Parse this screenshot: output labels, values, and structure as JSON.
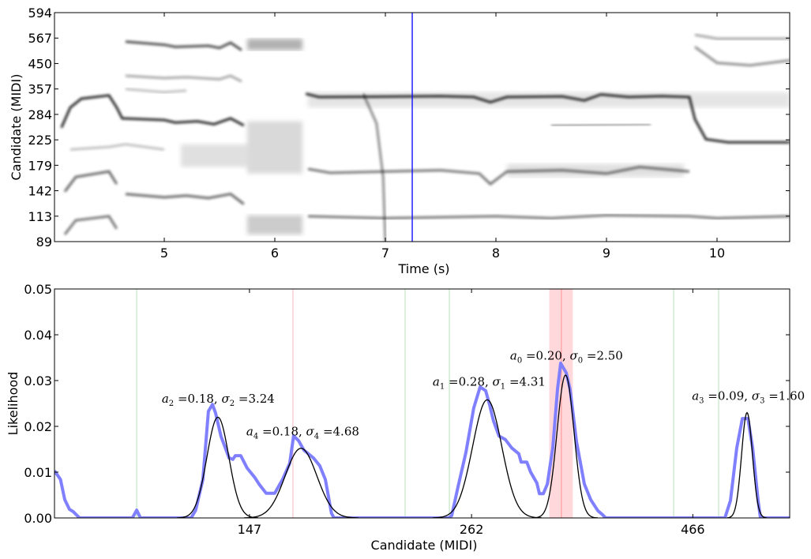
{
  "chart_data": [
    {
      "type": "heatmap",
      "title": "",
      "xlabel": "Time (s)",
      "ylabel": "Candidate (MIDI)",
      "xlim": [
        4.007,
        10.657
      ],
      "xticks": [
        5,
        6,
        7,
        8,
        9,
        10
      ],
      "xtick_labels": [
        "5",
        "6",
        "7",
        "8",
        "9",
        "10"
      ],
      "ytick_labels": [
        "89",
        "113",
        "142",
        "179",
        "225",
        "284",
        "357",
        "450",
        "567",
        "594"
      ],
      "ytick_ratio": 1.2594,
      "colormap": "gray_r",
      "cursor_time": 7.243,
      "cursor_color": "#0000ff",
      "traces": [
        {
          "name": "trace-main",
          "intensity": 0.85,
          "points": [
            [
              4.07,
              250
            ],
            [
              4.15,
              300
            ],
            [
              4.25,
              325
            ],
            [
              4.5,
              335
            ],
            [
              4.57,
              300
            ],
            [
              4.62,
              272
            ],
            [
              5.0,
              268
            ],
            [
              5.1,
              262
            ],
            [
              5.3,
              265
            ],
            [
              5.45,
              258
            ],
            [
              5.6,
              272
            ],
            [
              5.72,
              255
            ]
          ]
        },
        {
          "name": "trace-main-2",
          "intensity": 0.85,
          "points": [
            [
              6.28,
              340
            ],
            [
              6.4,
              330
            ],
            [
              6.9,
              331
            ],
            [
              7.5,
              333
            ],
            [
              7.8,
              330
            ],
            [
              7.95,
              315
            ],
            [
              8.1,
              330
            ],
            [
              8.6,
              332
            ],
            [
              8.8,
              320
            ],
            [
              8.95,
              338
            ],
            [
              9.2,
              330
            ],
            [
              9.5,
              333
            ],
            [
              9.75,
              330
            ],
            [
              9.8,
              270
            ],
            [
              9.9,
              225
            ],
            [
              10.1,
              219
            ],
            [
              10.657,
              219
            ]
          ]
        },
        {
          "name": "trace-upper",
          "intensity": 0.7,
          "points": [
            [
              4.65,
              545
            ],
            [
              5.0,
              530
            ],
            [
              5.1,
              520
            ],
            [
              5.4,
              525
            ],
            [
              5.5,
              515
            ],
            [
              5.6,
              540
            ],
            [
              5.7,
              505
            ]
          ]
        },
        {
          "name": "trace-upper-left",
          "intensity": 0.6,
          "points": [
            [
              4.15,
              505
            ],
            [
              4.5,
              505
            ]
          ]
        },
        {
          "name": "trace-400",
          "intensity": 0.35,
          "points": [
            [
              4.65,
              400
            ],
            [
              5.0,
              392
            ],
            [
              5.2,
              395
            ],
            [
              5.5,
              388
            ],
            [
              5.6,
              400
            ],
            [
              5.7,
              380
            ]
          ]
        },
        {
          "name": "trace-360",
          "intensity": 0.25,
          "points": [
            [
              4.65,
              355
            ],
            [
              5.0,
              345
            ],
            [
              5.2,
              350
            ]
          ]
        },
        {
          "name": "trace-170-left",
          "intensity": 0.6,
          "points": [
            [
              4.1,
              140
            ],
            [
              4.2,
              160
            ],
            [
              4.5,
              168
            ],
            [
              4.57,
              150
            ]
          ]
        },
        {
          "name": "trace-170-right",
          "intensity": 0.55,
          "points": [
            [
              6.3,
              172
            ],
            [
              6.5,
              166
            ],
            [
              7.0,
              168
            ],
            [
              7.5,
              170
            ],
            [
              7.85,
              165
            ],
            [
              7.95,
              150
            ],
            [
              8.1,
              168
            ],
            [
              8.6,
              170
            ],
            [
              9.0,
              165
            ],
            [
              9.3,
              175
            ],
            [
              9.75,
              168
            ]
          ]
        },
        {
          "name": "trace-135",
          "intensity": 0.6,
          "points": [
            [
              4.65,
              137
            ],
            [
              5.0,
              133
            ],
            [
              5.2,
              135
            ],
            [
              5.4,
              132
            ],
            [
              5.6,
              137
            ],
            [
              5.72,
              125
            ]
          ]
        },
        {
          "name": "trace-113-left",
          "intensity": 0.55,
          "points": [
            [
              4.1,
              95
            ],
            [
              4.2,
              108
            ],
            [
              4.5,
              112
            ],
            [
              4.57,
              100
            ]
          ]
        },
        {
          "name": "trace-113-right",
          "intensity": 0.55,
          "points": [
            [
              6.3,
              112
            ],
            [
              7.0,
              110
            ],
            [
              7.5,
              111
            ],
            [
              8.0,
              112
            ],
            [
              8.5,
              110
            ],
            [
              9.0,
              113
            ],
            [
              9.75,
              112
            ],
            [
              10.0,
              110
            ],
            [
              10.657,
              112
            ]
          ]
        },
        {
          "name": "trace-250",
          "intensity": 0.3,
          "points": [
            [
              4.15,
              248
            ],
            [
              4.5,
              248
            ]
          ]
        },
        {
          "name": "trace-200",
          "intensity": 0.25,
          "points": [
            [
              4.15,
              205
            ],
            [
              4.5,
              210
            ],
            [
              4.65,
              215
            ],
            [
              5.0,
              205
            ]
          ]
        },
        {
          "name": "trace-450-right",
          "intensity": 0.45,
          "points": [
            [
              9.8,
              520
            ],
            [
              10.0,
              450
            ],
            [
              10.3,
              440
            ],
            [
              10.657,
              460
            ]
          ]
        },
        {
          "name": "trace-560-right",
          "intensity": 0.35,
          "points": [
            [
              9.8,
              580
            ],
            [
              10.0,
              560
            ],
            [
              10.657,
              560
            ]
          ]
        },
        {
          "name": "trace-260-right",
          "intensity": 0.35,
          "points": [
            [
              8.5,
              255
            ],
            [
              9.4,
              258
            ]
          ]
        },
        {
          "name": "trace-sweep",
          "intensity": 0.45,
          "points": [
            [
              6.8,
              340
            ],
            [
              6.92,
              260
            ],
            [
              6.98,
              160
            ],
            [
              7.0,
              89
            ]
          ]
        }
      ],
      "blocks": [
        {
          "t0": 5.75,
          "t1": 6.25,
          "c0": 505,
          "c1": 560,
          "intensity": 0.3
        },
        {
          "t0": 5.75,
          "t1": 6.25,
          "c0": 165,
          "c1": 265,
          "intensity": 0.15
        },
        {
          "t0": 5.75,
          "t1": 6.25,
          "c0": 95,
          "c1": 113,
          "intensity": 0.2
        },
        {
          "t0": 5.15,
          "t1": 5.75,
          "c0": 175,
          "c1": 215,
          "intensity": 0.12
        },
        {
          "t0": 6.3,
          "t1": 10.657,
          "c0": 300,
          "c1": 345,
          "intensity": 0.1
        },
        {
          "t0": 8.1,
          "t1": 9.7,
          "c0": 160,
          "c1": 180,
          "intensity": 0.12
        }
      ]
    },
    {
      "type": "line",
      "title": "",
      "xlabel": "Candidate (MIDI)",
      "ylabel": "Likelihood",
      "xscale": "log",
      "xlim": [
        88.5,
        599.6
      ],
      "ylim": [
        0,
        0.05
      ],
      "xticks": [
        147,
        262,
        466
      ],
      "xtick_labels": [
        "147",
        "262",
        "466"
      ],
      "yticks": [
        0,
        0.01,
        0.02,
        0.03,
        0.04,
        0.05
      ],
      "ytick_labels": [
        "0.00",
        "0.01",
        "0.02",
        "0.03",
        "0.04",
        "0.05"
      ],
      "observed": {
        "name": "likelihood",
        "color": "#8080ff",
        "points": [
          [
            88.5,
            0.0103
          ],
          [
            89.9,
            0.0084
          ],
          [
            90.9,
            0.004
          ],
          [
            92.0,
            0.0019
          ],
          [
            92.9,
            0.0014
          ],
          [
            93.9,
            0.0005
          ],
          [
            94.5,
            0
          ],
          [
            108.4,
            0
          ],
          [
            109.6,
            0.0017
          ],
          [
            110.7,
            0
          ],
          [
            126.3,
            0
          ],
          [
            127.8,
            0.0017
          ],
          [
            130.2,
            0.0084
          ],
          [
            132.1,
            0.0233
          ],
          [
            133.5,
            0.0248
          ],
          [
            134.6,
            0.0229
          ],
          [
            136.5,
            0.0178
          ],
          [
            139.4,
            0.0131
          ],
          [
            140.8,
            0.0128
          ],
          [
            141.7,
            0.0136
          ],
          [
            143.7,
            0.0136
          ],
          [
            146.1,
            0.0109
          ],
          [
            149.1,
            0.0088
          ],
          [
            150.7,
            0.0074
          ],
          [
            153.5,
            0.0054
          ],
          [
            157.0,
            0.0054
          ],
          [
            160.2,
            0.0084
          ],
          [
            163.2,
            0.0119
          ],
          [
            164.9,
            0.0179
          ],
          [
            167.0,
            0.0169
          ],
          [
            169.4,
            0.0148
          ],
          [
            173.6,
            0.0131
          ],
          [
            176.5,
            0.0114
          ],
          [
            179.1,
            0.0084
          ],
          [
            182.0,
            0.001
          ],
          [
            183.2,
            0
          ],
          [
            246.8,
            0
          ],
          [
            248.8,
            0.0005
          ],
          [
            252.9,
            0.0067
          ],
          [
            258.2,
            0.0143
          ],
          [
            263.5,
            0.024
          ],
          [
            267.9,
            0.0286
          ],
          [
            271.8,
            0.0278
          ],
          [
            274.6,
            0.0247
          ],
          [
            277.4,
            0.0212
          ],
          [
            281.4,
            0.0179
          ],
          [
            286.1,
            0.0171
          ],
          [
            290.9,
            0.0153
          ],
          [
            296.3,
            0.014
          ],
          [
            298.1,
            0.0122
          ],
          [
            302.5,
            0.0122
          ],
          [
            305.6,
            0.01
          ],
          [
            310.6,
            0.0076
          ],
          [
            312.6,
            0.0053
          ],
          [
            315.8,
            0.0053
          ],
          [
            319.1,
            0.0074
          ],
          [
            323.7,
            0.0153
          ],
          [
            327.7,
            0.0281
          ],
          [
            330.4,
            0.0338
          ],
          [
            335.2,
            0.0317
          ],
          [
            338.6,
            0.0281
          ],
          [
            344.3,
            0.0166
          ],
          [
            351.4,
            0.0074
          ],
          [
            357.2,
            0.004
          ],
          [
            363.9,
            0.0016
          ],
          [
            368.4,
            0.0007
          ],
          [
            371.5,
            0
          ],
          [
            506.6,
            0
          ],
          [
            514.0,
            0.0038
          ],
          [
            522.5,
            0.0153
          ],
          [
            530.1,
            0.0217
          ],
          [
            537.8,
            0.0217
          ],
          [
            544.5,
            0.0153
          ],
          [
            552.3,
            0.0038
          ],
          [
            555.7,
            0
          ],
          [
            599.6,
            0
          ]
        ]
      },
      "fits": [
        {
          "index": "0",
          "a": "0.20",
          "sigma": "2.50",
          "center": 334.6,
          "peak": 0.0312,
          "label_x": 289.6,
          "label_y": 0.0346
        },
        {
          "index": "1",
          "a": "0.28",
          "sigma": "4.31",
          "center": 272.9,
          "peak": 0.0258,
          "label_x": 236.8,
          "label_y": 0.0289
        },
        {
          "index": "2",
          "a": "0.18",
          "sigma": "3.24",
          "center": 135.4,
          "peak": 0.022,
          "label_x": 117.0,
          "label_y": 0.0252
        },
        {
          "index": "3",
          "a": "0.09",
          "sigma": "1.60",
          "center": 536.6,
          "peak": 0.023,
          "label_x": 464.9,
          "label_y": 0.0258
        },
        {
          "index": "4",
          "a": "0.18",
          "sigma": "4.68",
          "center": 168.1,
          "peak": 0.0152,
          "label_x": 145.8,
          "label_y": 0.018
        }
      ],
      "a_symbol": "a",
      "sigma_symbol": "σ",
      "green_lines": [
        109.6,
        220.4,
        247.3,
        443.3,
        498.4
      ],
      "green_color": "#b8e0b8",
      "pink_lines": [
        164.6
      ],
      "pink_color": "#f0b8c0",
      "selected_line": 331.0,
      "selected_color": "#ff9090",
      "selected_band": [
        320.7,
        341.0
      ],
      "band_color": "#ffd8dc",
      "fit_color": "#000000"
    }
  ]
}
